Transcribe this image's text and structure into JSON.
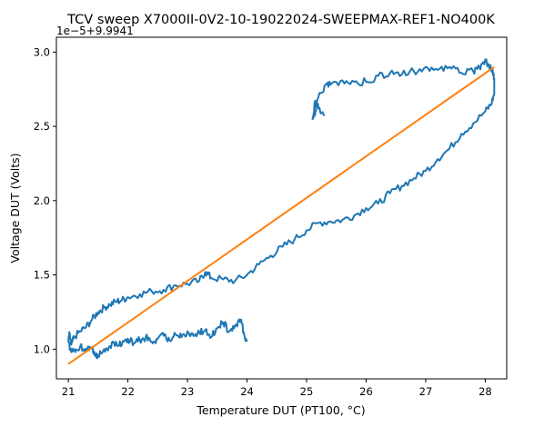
{
  "chart_data": {
    "type": "line",
    "title": "TCV sweep X7000II-0V2-10-19022024-SWEEPMAX-REF1-NO400K",
    "xlabel": "Temperature DUT (PT100, °C)",
    "ylabel": "Voltage DUT (Volts)",
    "y_offset_text": "1e−5+9.9941",
    "xlim": [
      20.8,
      28.36
    ],
    "ylim": [
      0.8,
      3.1
    ],
    "x_ticks": [
      21,
      22,
      23,
      24,
      25,
      26,
      27,
      28
    ],
    "x_tick_labels": [
      "21",
      "22",
      "23",
      "24",
      "25",
      "26",
      "27",
      "28"
    ],
    "y_ticks": [
      1.0,
      1.5,
      2.0,
      2.5,
      3.0
    ],
    "y_tick_labels": [
      "1.0",
      "1.5",
      "2.0",
      "2.5",
      "3.0"
    ],
    "grid": false,
    "legend": "none",
    "series": [
      {
        "color": "#1f77b4",
        "x": [
          24.0,
          23.95,
          23.9,
          23.8,
          23.7,
          23.6,
          23.5,
          23.4,
          23.3,
          23.2,
          23.1,
          23.0,
          22.9,
          22.8,
          22.7,
          22.6,
          22.5,
          22.4,
          22.3,
          22.2,
          22.1,
          22.0,
          21.9,
          21.8,
          21.7,
          21.6,
          21.5,
          21.45,
          21.4,
          21.3,
          21.2,
          21.1,
          21.05,
          21.0,
          21.02,
          21.05,
          21.1,
          21.2,
          21.3,
          21.4,
          21.5,
          21.6,
          21.7,
          21.8,
          21.9,
          22.0,
          22.2,
          22.4,
          22.6,
          22.8,
          23.0,
          23.2,
          23.3,
          23.4,
          23.6,
          23.8,
          24.0,
          24.2,
          24.4,
          24.6,
          24.8,
          25.0,
          25.2,
          25.4,
          25.6,
          25.8,
          26.0,
          26.2,
          26.4,
          26.6,
          26.8,
          27.0,
          27.2,
          27.4,
          27.6,
          27.8,
          28.0,
          28.1,
          28.15,
          28.15,
          28.12,
          28.05,
          28.0,
          27.9,
          27.8,
          27.6,
          27.4,
          27.2,
          27.0,
          26.8,
          26.6,
          26.4,
          26.2,
          26.0,
          25.8,
          25.6,
          25.4,
          25.3,
          25.2,
          25.15,
          25.1,
          25.15,
          25.2,
          25.3
        ],
        "y": [
          1.05,
          1.1,
          1.2,
          1.16,
          1.12,
          1.18,
          1.14,
          1.08,
          1.13,
          1.11,
          1.09,
          1.12,
          1.08,
          1.1,
          1.06,
          1.09,
          1.07,
          1.05,
          1.08,
          1.06,
          1.04,
          1.07,
          1.03,
          1.05,
          1.02,
          1.0,
          0.96,
          0.97,
          1.01,
          0.99,
          1.02,
          1.0,
          0.98,
          1.05,
          1.1,
          1.03,
          1.08,
          1.12,
          1.15,
          1.2,
          1.25,
          1.28,
          1.3,
          1.32,
          1.33,
          1.35,
          1.37,
          1.39,
          1.4,
          1.43,
          1.44,
          1.46,
          1.52,
          1.48,
          1.47,
          1.46,
          1.5,
          1.57,
          1.63,
          1.69,
          1.74,
          1.8,
          1.85,
          1.86,
          1.87,
          1.9,
          1.95,
          1.98,
          2.05,
          2.1,
          2.15,
          2.2,
          2.28,
          2.35,
          2.45,
          2.52,
          2.6,
          2.65,
          2.72,
          2.82,
          2.88,
          2.92,
          2.95,
          2.9,
          2.87,
          2.86,
          2.9,
          2.88,
          2.9,
          2.87,
          2.85,
          2.86,
          2.84,
          2.8,
          2.8,
          2.81,
          2.78,
          2.77,
          2.7,
          2.6,
          2.55,
          2.67,
          2.62,
          2.57
        ],
        "noise_amplitude": 0.025
      },
      {
        "color": "#ff7f0e",
        "x": [
          21.0,
          28.15
        ],
        "y": [
          0.9,
          2.9
        ]
      }
    ]
  }
}
